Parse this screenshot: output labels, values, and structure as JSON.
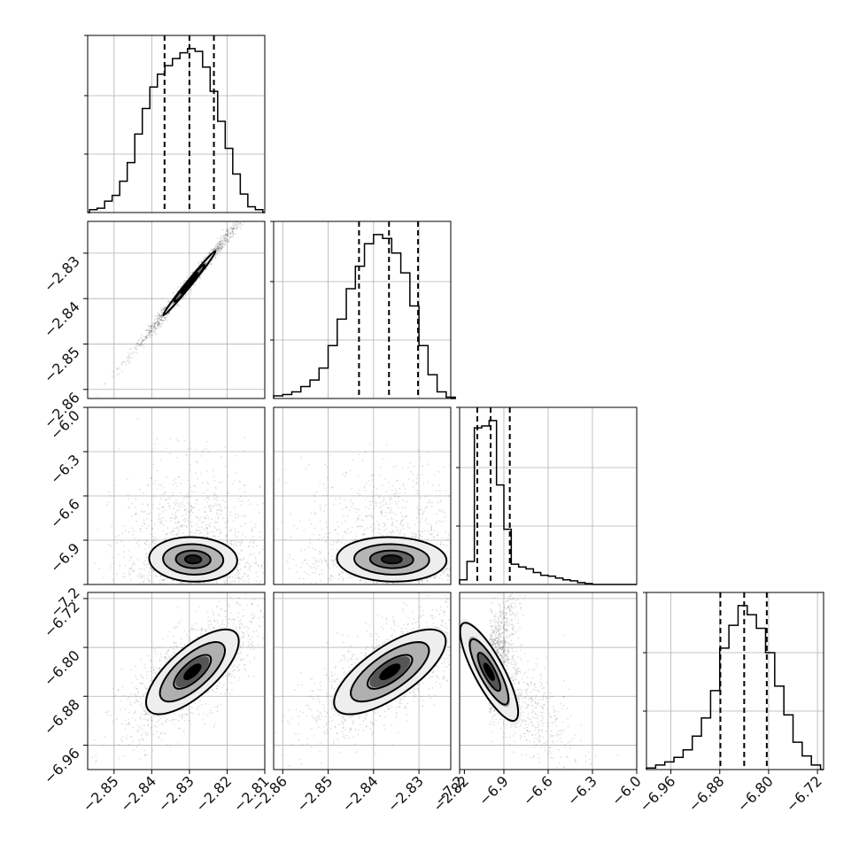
{
  "chart_data": {
    "type": "corner",
    "grid": true,
    "parameters": [
      {
        "range": [
          -2.857,
          -2.81
        ],
        "ticks": [
          -2.85,
          -2.84,
          -2.83,
          -2.82,
          -2.81
        ],
        "tick_labels": [
          "−2.85",
          "−2.84",
          "−2.83",
          "−2.82",
          "−2.81"
        ],
        "quantiles": [
          -2.8366,
          -2.83,
          -2.8235
        ],
        "hist_centers": [
          -2.8555,
          -2.8535,
          -2.8515,
          -2.8495,
          -2.8475,
          -2.8455,
          -2.8435,
          -2.8415,
          -2.8395,
          -2.8375,
          -2.8355,
          -2.8335,
          -2.8315,
          -2.8295,
          -2.8275,
          -2.8255,
          -2.8235,
          -2.8215,
          -2.8195,
          -2.8175,
          -2.8155,
          -2.8135,
          -2.8115
        ],
        "hist_counts": [
          2,
          3,
          8,
          12,
          22,
          35,
          55,
          73,
          88,
          97,
          103,
          108,
          112,
          115,
          113,
          102,
          85,
          64,
          45,
          27,
          13,
          4,
          2
        ]
      },
      {
        "range": [
          -2.862,
          -2.823
        ],
        "ticks": [
          -2.86,
          -2.85,
          -2.84,
          -2.83,
          -2.82
        ],
        "tick_labels": [
          "−2.86",
          "−2.85",
          "−2.84",
          "−2.83",
          "−2.82"
        ],
        "quantiles": [
          -2.8432,
          -2.8366,
          -2.8302
        ],
        "hist_centers": [
          -2.861,
          -2.859,
          -2.857,
          -2.855,
          -2.853,
          -2.851,
          -2.849,
          -2.847,
          -2.845,
          -2.843,
          -2.841,
          -2.839,
          -2.837,
          -2.835,
          -2.833,
          -2.831,
          -2.829,
          -2.827,
          -2.825,
          -2.823
        ],
        "hist_counts": [
          2,
          3,
          5,
          9,
          14,
          23,
          40,
          60,
          83,
          100,
          117,
          124,
          121,
          110,
          95,
          70,
          40,
          18,
          5,
          1
        ]
      },
      {
        "range": [
          -7.2,
          -6.0
        ],
        "ticks": [
          -7.2,
          -6.9,
          -6.6,
          -6.3,
          -6.0
        ],
        "tick_labels": [
          "−7.2",
          "−6.9",
          "−6.6",
          "−6.3",
          "−6.0"
        ],
        "quantiles": [
          -7.08,
          -6.99,
          -6.86
        ],
        "hist_centers": [
          -7.175,
          -7.125,
          -7.075,
          -7.025,
          -6.975,
          -6.925,
          -6.875,
          -6.825,
          -6.775,
          -6.725,
          -6.675,
          -6.625,
          -6.575,
          -6.525,
          -6.475,
          -6.425,
          -6.375,
          -6.325
        ],
        "hist_counts": [
          5,
          25,
          170,
          172,
          178,
          108,
          60,
          22,
          19,
          17,
          13,
          10,
          9,
          7,
          5,
          4,
          2,
          1
        ]
      },
      {
        "range": [
          -7.0,
          -6.71
        ],
        "ticks": [
          -6.96,
          -6.88,
          -6.8,
          -6.72
        ],
        "tick_labels": [
          "−6.96",
          "−6.88",
          "−6.80",
          "−6.72"
        ],
        "quantiles": [
          -6.879,
          -6.84,
          -6.803
        ],
        "hist_centers": [
          -6.9925,
          -6.9775,
          -6.9625,
          -6.9475,
          -6.9325,
          -6.9175,
          -6.9025,
          -6.8875,
          -6.8725,
          -6.8575,
          -6.8425,
          -6.8275,
          -6.8125,
          -6.7975,
          -6.7825,
          -6.7675,
          -6.7525,
          -6.7375,
          -6.7225
        ],
        "hist_counts": [
          1,
          3,
          5,
          8,
          13,
          22,
          34,
          52,
          80,
          95,
          108,
          102,
          93,
          77,
          55,
          36,
          18,
          9,
          3
        ]
      }
    ],
    "pairs": [
      {
        "row": 1,
        "col": 0,
        "corr": 0.995,
        "mean": [
          -2.83,
          -2.8366
        ],
        "sd": [
          0.005,
          0.0051
        ],
        "levels": [
          {
            "r": 0.9,
            "fill": "#d8d8d8"
          },
          {
            "r": 0.55,
            "fill": "#777777"
          },
          {
            "r": 0.3,
            "fill": "#000000"
          }
        ],
        "contours": [
          1.4,
          0.8
        ]
      },
      {
        "row": 2,
        "col": 0,
        "corr": -0.05,
        "mean": [
          -2.829,
          -7.03
        ],
        "sd": [
          0.0062,
          0.08
        ],
        "levels": [
          {
            "r": 1.2,
            "fill": "#eeeeee"
          },
          {
            "r": 0.8,
            "fill": "#b5b5b5"
          },
          {
            "r": 0.45,
            "fill": "#666666"
          },
          {
            "r": 0.2,
            "fill": "#1a1a1a"
          }
        ],
        "contours": [
          1.9,
          1.3,
          0.75,
          0.35
        ]
      },
      {
        "row": 2,
        "col": 1,
        "corr": -0.05,
        "mean": [
          -2.836,
          -7.03
        ],
        "sd": [
          0.0064,
          0.08
        ],
        "levels": [
          {
            "r": 1.2,
            "fill": "#eeeeee"
          },
          {
            "r": 0.8,
            "fill": "#b5b5b5"
          },
          {
            "r": 0.45,
            "fill": "#666666"
          },
          {
            "r": 0.2,
            "fill": "#1a1a1a"
          }
        ],
        "contours": [
          1.9,
          1.3,
          0.75,
          0.35
        ]
      },
      {
        "row": 3,
        "col": 0,
        "corr": 0.72,
        "mean": [
          -2.8292,
          -6.84
        ],
        "sd": [
          0.0062,
          0.035
        ],
        "levels": [
          {
            "r": 1.3,
            "fill": "#eeeeee"
          },
          {
            "r": 0.85,
            "fill": "#b0b0b0"
          },
          {
            "r": 0.45,
            "fill": "#555555"
          },
          {
            "r": 0.2,
            "fill": "#000000"
          }
        ],
        "contours": [
          2.0,
          1.4,
          0.8,
          0.35
        ]
      },
      {
        "row": 3,
        "col": 1,
        "corr": 0.72,
        "mean": [
          -2.8364,
          -6.84
        ],
        "sd": [
          0.0062,
          0.035
        ],
        "levels": [
          {
            "r": 1.3,
            "fill": "#eeeeee"
          },
          {
            "r": 0.85,
            "fill": "#b0b0b0"
          },
          {
            "r": 0.45,
            "fill": "#555555"
          },
          {
            "r": 0.2,
            "fill": "#000000"
          }
        ],
        "contours": [
          2.0,
          1.4,
          0.8,
          0.35
        ]
      },
      {
        "row": 3,
        "col": 2,
        "corr": -0.82,
        "mean": [
          -7.0,
          -6.84
        ],
        "sd": [
          0.11,
          0.045
        ],
        "levels": [
          {
            "r": 1.2,
            "fill": "#eeeeee"
          },
          {
            "r": 0.8,
            "fill": "#aaaaaa"
          },
          {
            "r": 0.45,
            "fill": "#555555"
          },
          {
            "r": 0.2,
            "fill": "#000000"
          }
        ],
        "contours": [
          1.8,
          1.2,
          0.7,
          0.3
        ]
      }
    ]
  }
}
